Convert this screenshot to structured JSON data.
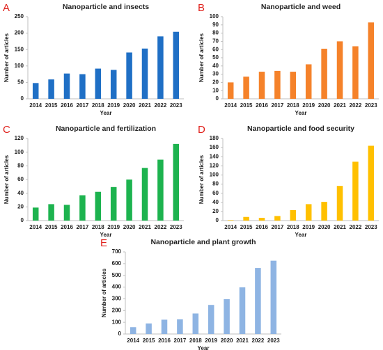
{
  "chart_data": [
    {
      "type": "bar",
      "panel": "A",
      "title": "Nanoparticle and insects",
      "x_label": "Year",
      "y_label": "Number of articles",
      "color": "#1f6fc5",
      "categories": [
        "2014",
        "2015",
        "2016",
        "2017",
        "2018",
        "2019",
        "2020",
        "2021",
        "2022",
        "2023"
      ],
      "values": [
        48,
        59,
        77,
        75,
        92,
        88,
        141,
        153,
        190,
        204
      ],
      "ylim": [
        0,
        250
      ],
      "yticks": [
        0,
        50,
        100,
        150,
        200,
        250
      ],
      "grid": false
    },
    {
      "type": "bar",
      "panel": "B",
      "title": "Nanoparticle and weed",
      "x_label": "Year",
      "y_label": "Number of articles",
      "color": "#f5822a",
      "categories": [
        "2014",
        "2015",
        "2016",
        "2017",
        "2018",
        "2019",
        "2020",
        "2021",
        "2022",
        "2023"
      ],
      "values": [
        20,
        27,
        33,
        34,
        33,
        42,
        61,
        70,
        64,
        93
      ],
      "ylim": [
        0,
        100
      ],
      "yticks": [
        0,
        10,
        20,
        30,
        40,
        50,
        60,
        70,
        80,
        90,
        100
      ],
      "grid": false
    },
    {
      "type": "bar",
      "panel": "C",
      "title": "Nanoparticle and fertilization",
      "x_label": "Year",
      "y_label": "Number of articles",
      "color": "#1db34f",
      "categories": [
        "2014",
        "2015",
        "2016",
        "2017",
        "2018",
        "2019",
        "2020",
        "2021",
        "2022",
        "2023"
      ],
      "values": [
        19,
        24,
        23,
        37,
        42,
        49,
        60,
        77,
        89,
        112
      ],
      "ylim": [
        0,
        120
      ],
      "yticks": [
        0,
        20,
        40,
        60,
        80,
        100,
        120
      ],
      "grid": false
    },
    {
      "type": "bar",
      "panel": "D",
      "title": "Nanoparticle and food security",
      "x_label": "Year",
      "y_label": "Number of articles",
      "color": "#ffc000",
      "categories": [
        "2014",
        "2015",
        "2016",
        "2017",
        "2018",
        "2019",
        "2020",
        "2021",
        "2022",
        "2023"
      ],
      "values": [
        1,
        8,
        6,
        10,
        23,
        36,
        41,
        76,
        129,
        164
      ],
      "ylim": [
        0,
        180
      ],
      "yticks": [
        0,
        20,
        40,
        60,
        80,
        100,
        120,
        140,
        160,
        180
      ],
      "grid": false
    },
    {
      "type": "bar",
      "panel": "E",
      "title": "Nanoparticle and plant growth",
      "x_label": "Year",
      "y_label": "Number of articles",
      "color": "#8eb4e3",
      "categories": [
        "2014",
        "2015",
        "2016",
        "2017",
        "2018",
        "2019",
        "2020",
        "2021",
        "2022",
        "2023"
      ],
      "values": [
        58,
        90,
        122,
        125,
        175,
        248,
        297,
        398,
        563,
        625
      ],
      "ylim": [
        0,
        700
      ],
      "yticks": [
        0,
        100,
        200,
        300,
        400,
        500,
        600,
        700
      ],
      "grid": false
    }
  ]
}
